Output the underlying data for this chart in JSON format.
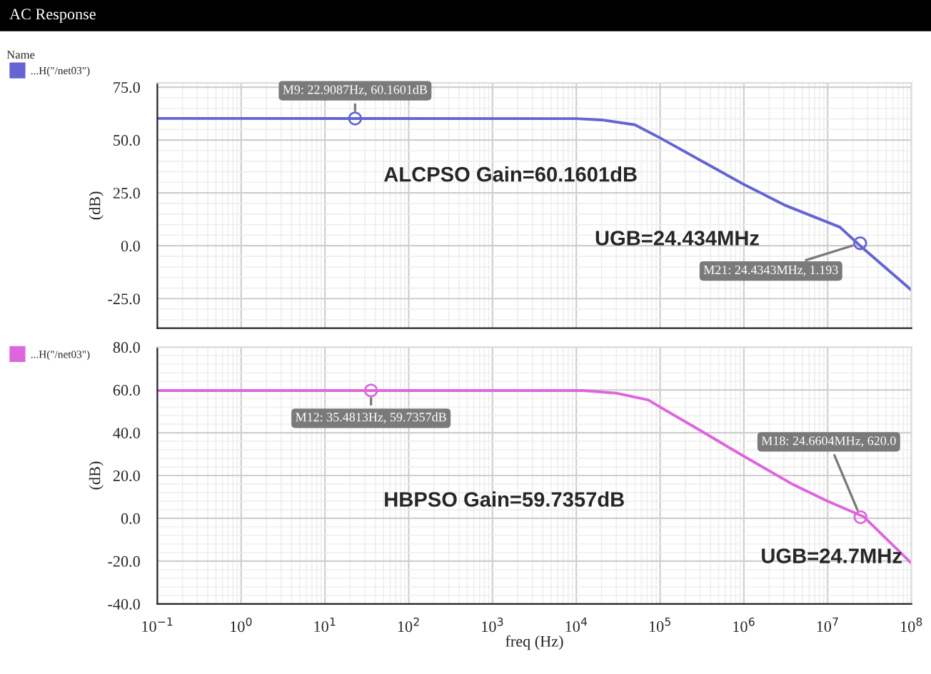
{
  "chart_data": [
    {
      "type": "line",
      "title": "AC Response",
      "legend_title": "Name",
      "ylabel": "(dB)",
      "xlim": [
        0.1,
        100000000
      ],
      "ylim": [
        -39,
        77
      ],
      "log": "x",
      "grid": true,
      "legend": "left",
      "tick_labels": "y",
      "marker": "none",
      "line_style": "solid",
      "xticks": [
        {
          "value": 0.1,
          "label": null
        },
        {
          "value": 1,
          "label": null
        },
        {
          "value": 10,
          "label": null
        },
        {
          "value": 100,
          "label": null
        },
        {
          "value": 1000,
          "label": null
        },
        {
          "value": 10000,
          "label": null
        },
        {
          "value": 100000,
          "label": null
        },
        {
          "value": 1000000,
          "label": null
        },
        {
          "value": 10000000,
          "label": null
        },
        {
          "value": 100000000,
          "label": null
        }
      ],
      "yticks": [
        {
          "value": -25,
          "label": "-25.0"
        },
        {
          "value": 0,
          "label": "0.0"
        },
        {
          "value": 25,
          "label": "25.0"
        },
        {
          "value": 50,
          "label": "50.0"
        },
        {
          "value": 75,
          "label": "75.0"
        }
      ],
      "series": [
        {
          "name": "...H(\"/net03\")",
          "color": "#6464d4",
          "x": [
            0.1,
            10000,
            20000,
            50000,
            100000,
            316000,
            1000000,
            3160000,
            14000000,
            24434000,
            100000000
          ],
          "values": [
            60.2,
            60.1,
            59.5,
            57.2,
            51,
            40,
            29,
            19,
            8.8,
            0,
            -21
          ]
        }
      ],
      "annotations": [
        {
          "text": "M9: 22.9087Hz, 60.1601dB",
          "x": 22.9087,
          "y": 60.1601
        },
        "ALCPSO Gain=60.1601dB",
        "UGB=24.434MHz",
        {
          "text": "M21: 24.4343MHz, 1.193",
          "x": 24434300,
          "y": 1.193
        }
      ]
    },
    {
      "type": "line",
      "ylabel": "(dB)",
      "xlabel": "freq (Hz)",
      "xlim": [
        0.1,
        100000000
      ],
      "ylim": [
        -40,
        80
      ],
      "log": "x",
      "grid": true,
      "legend": "left",
      "marker": "none",
      "line_style": "solid",
      "xticks": [
        {
          "value": 0.1,
          "label": "10$^{−1}$"
        },
        {
          "value": 1,
          "label": "10$^{0}$"
        },
        {
          "value": 10,
          "label": "10$^{1}$"
        },
        {
          "value": 100,
          "label": "10$^{2}$"
        },
        {
          "value": 1000,
          "label": "10$^{3}$"
        },
        {
          "value": 10000,
          "label": "10$^{4}$"
        },
        {
          "value": 100000,
          "label": "10$^{5}$"
        },
        {
          "value": 1000000,
          "label": "10$^{6}$"
        },
        {
          "value": 10000000,
          "label": "10$^{7}$"
        },
        {
          "value": 100000000,
          "label": "10$^{8}$"
        }
      ],
      "yticks": [
        {
          "value": -40,
          "label": "-40.0"
        },
        {
          "value": -20,
          "label": "-20.0"
        },
        {
          "value": 0,
          "label": "0.0"
        },
        {
          "value": 20,
          "label": "20.0"
        },
        {
          "value": 40,
          "label": "40.0"
        },
        {
          "value": 60,
          "label": "60.0"
        },
        {
          "value": 80,
          "label": "80.0"
        }
      ],
      "series": [
        {
          "name": "...H(\"/net03\")",
          "color": "#dd66dd",
          "x": [
            0.1,
            12000,
            30000,
            72000,
            100000,
            316000,
            1000000,
            3700000,
            10000000,
            27000000,
            100000000
          ],
          "values": [
            59.7,
            59.7,
            58.5,
            55.3,
            52,
            40.6,
            29,
            16.2,
            8,
            0.7,
            -21
          ]
        }
      ],
      "annotations": [
        {
          "text": "M12: 35.4813Hz, 59.7357dB",
          "x": 35.4813,
          "y": 59.7357
        },
        "HBPSO Gain=59.7357dB",
        {
          "text": "M18: 24.6604MHz, 620.0",
          "x": 24660400,
          "y": 0.5
        },
        "UGB=24.7MHz"
      ]
    }
  ]
}
